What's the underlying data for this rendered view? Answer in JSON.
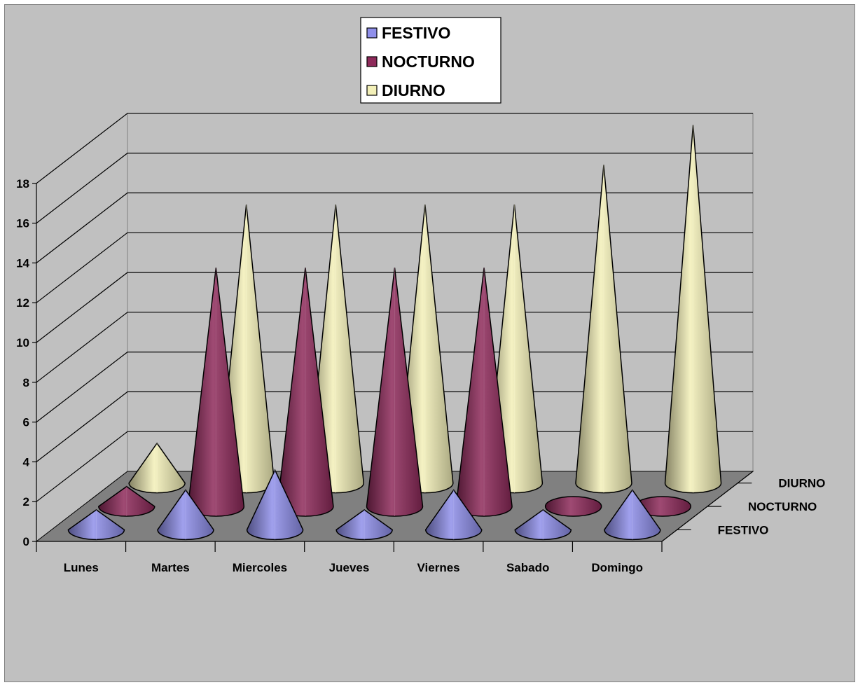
{
  "chart_data": {
    "type": "3d-cone-column",
    "categories": [
      "Lunes",
      "Martes",
      "Miercoles",
      "Jueves",
      "Viernes",
      "Sabado",
      "Domingo"
    ],
    "series": [
      {
        "name": "FESTIVO",
        "values": [
          1,
          2,
          3,
          1,
          2,
          1,
          2
        ],
        "color": "#8f8fea"
      },
      {
        "name": "NOCTURNO",
        "values": [
          1,
          12,
          12,
          12,
          12,
          0,
          0
        ],
        "color": "#8e2a5a"
      },
      {
        "name": "DIURNO",
        "values": [
          2,
          14,
          14,
          14,
          14,
          16,
          18
        ],
        "color": "#f3f0b8"
      }
    ],
    "y_ticks": [
      "0",
      "2",
      "4",
      "6",
      "8",
      "10",
      "12",
      "14",
      "16",
      "18"
    ],
    "ylim": [
      0,
      18
    ],
    "grid": true,
    "legend_position": "top-center",
    "depth_axis_labels": [
      "FESTIVO",
      "NOCTURNO",
      "DIURNO"
    ]
  }
}
